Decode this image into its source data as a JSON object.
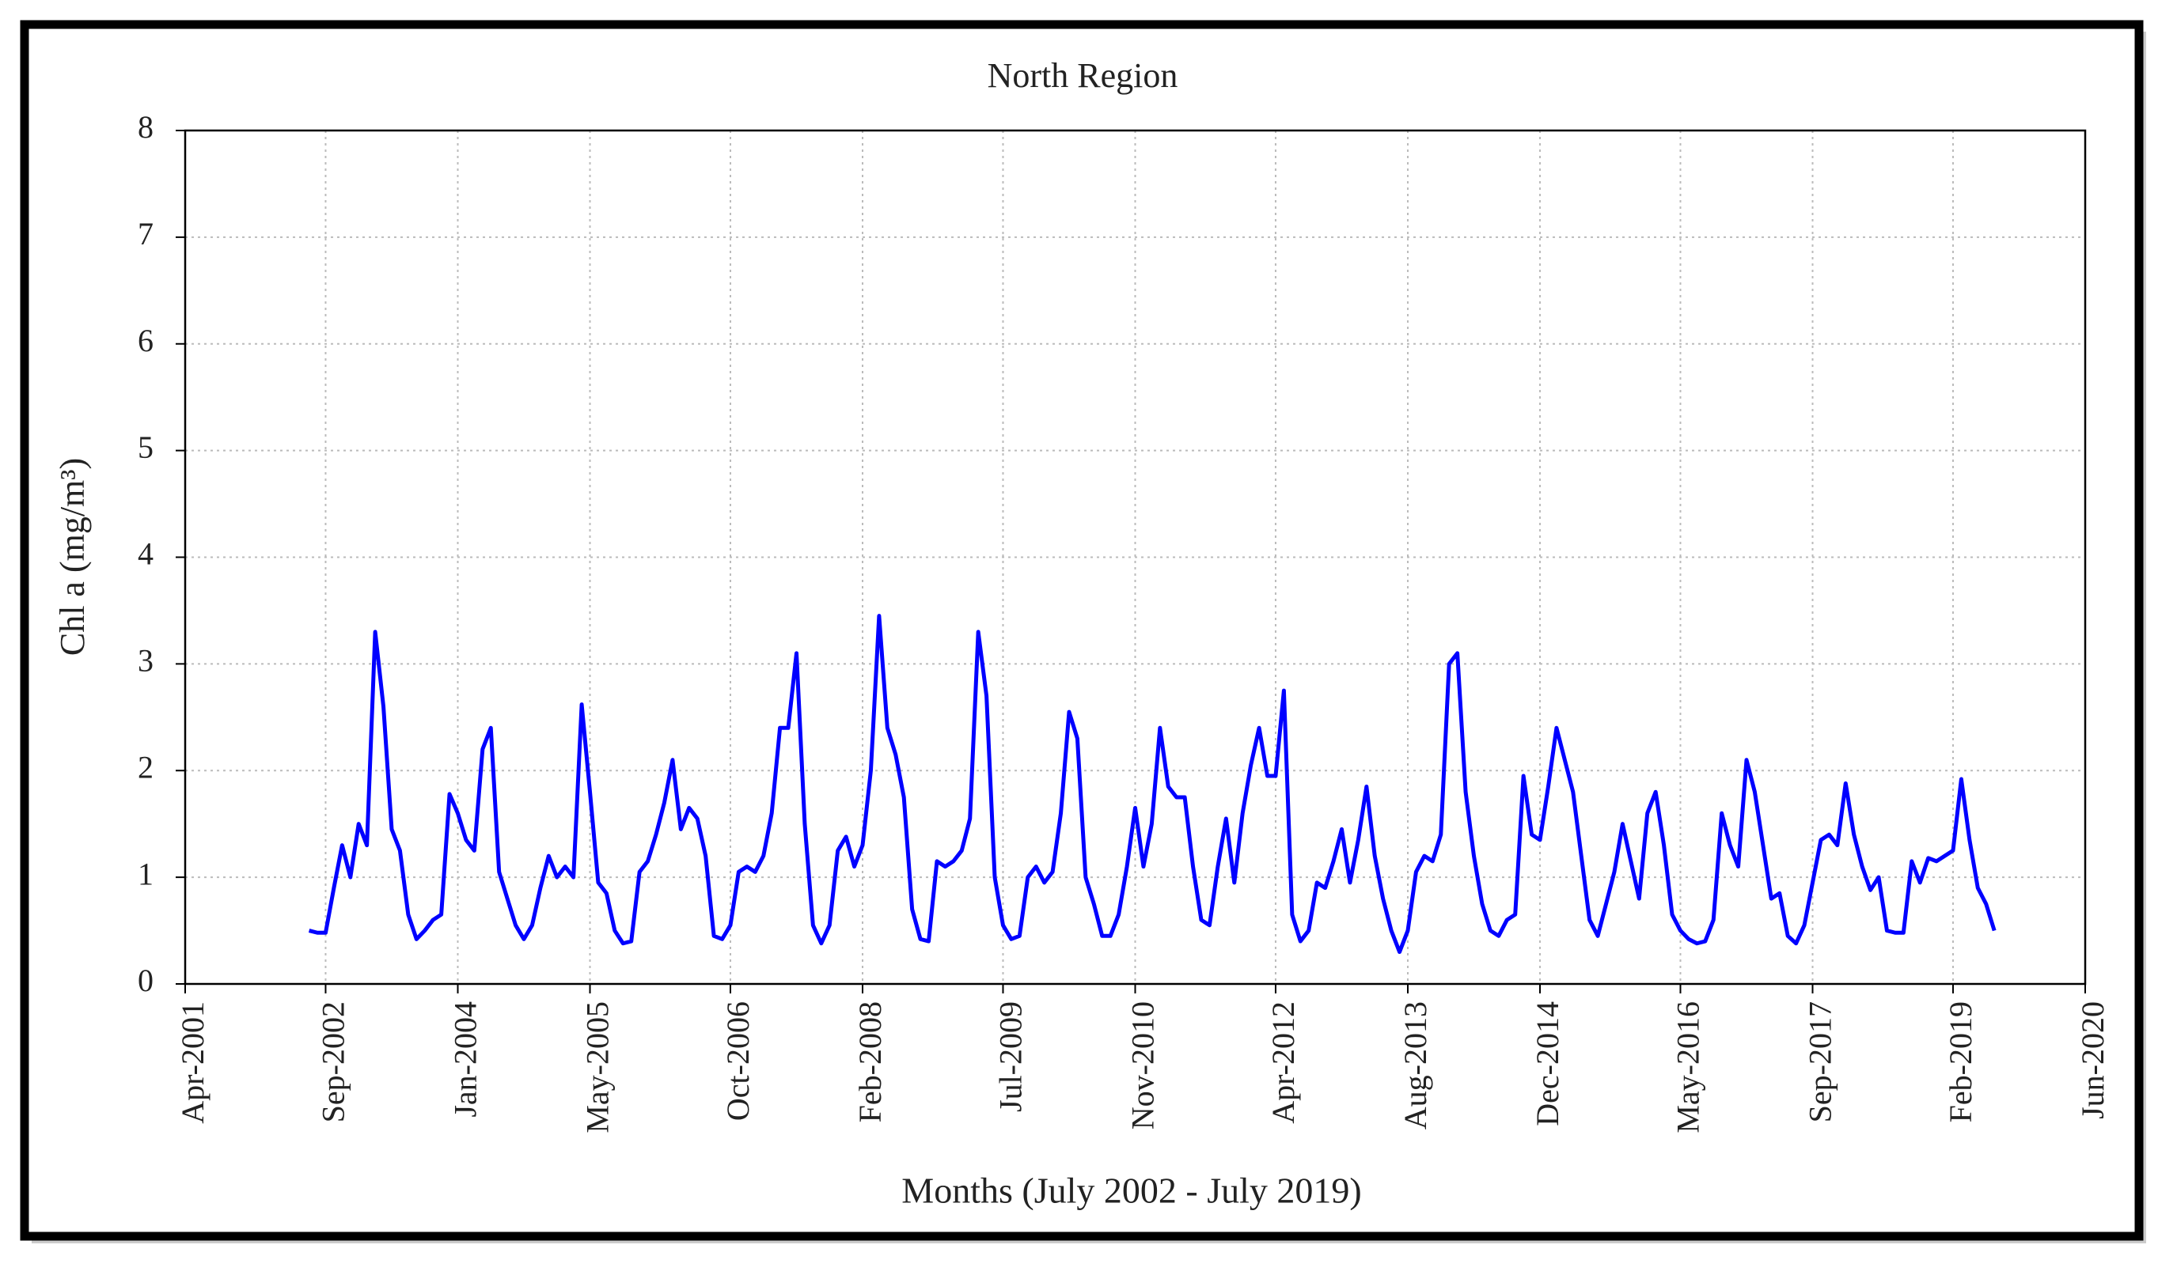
{
  "chart_data": {
    "type": "line",
    "title": "North Region",
    "xlabel": "Months (July 2002 - July 2019)",
    "ylabel": "Chl a (mg/m³)",
    "x": [
      "2002-07",
      "2002-08",
      "2002-09",
      "2002-10",
      "2002-11",
      "2002-12",
      "2003-01",
      "2003-02",
      "2003-03",
      "2003-04",
      "2003-05",
      "2003-06",
      "2003-07",
      "2003-08",
      "2003-09",
      "2003-10",
      "2003-11",
      "2003-12",
      "2004-01",
      "2004-02",
      "2004-03",
      "2004-04",
      "2004-05",
      "2004-06",
      "2004-07",
      "2004-08",
      "2004-09",
      "2004-10",
      "2004-11",
      "2004-12",
      "2005-01",
      "2005-02",
      "2005-03",
      "2005-04",
      "2005-05",
      "2005-06",
      "2005-07",
      "2005-08",
      "2005-09",
      "2005-10",
      "2005-11",
      "2005-12",
      "2006-01",
      "2006-02",
      "2006-03",
      "2006-04",
      "2006-05",
      "2006-06",
      "2006-07",
      "2006-08",
      "2006-09",
      "2006-10",
      "2006-11",
      "2006-12",
      "2007-01",
      "2007-02",
      "2007-03",
      "2007-04",
      "2007-05",
      "2007-06",
      "2007-07",
      "2007-08",
      "2007-09",
      "2007-10",
      "2007-11",
      "2007-12",
      "2008-01",
      "2008-02",
      "2008-03",
      "2008-04",
      "2008-05",
      "2008-06",
      "2008-07",
      "2008-08",
      "2008-09",
      "2008-10",
      "2008-11",
      "2008-12",
      "2009-01",
      "2009-02",
      "2009-03",
      "2009-04",
      "2009-05",
      "2009-06",
      "2009-07",
      "2009-08",
      "2009-09",
      "2009-10",
      "2009-11",
      "2009-12",
      "2010-01",
      "2010-02",
      "2010-03",
      "2010-04",
      "2010-05",
      "2010-06",
      "2010-07",
      "2010-08",
      "2010-09",
      "2010-10",
      "2010-11",
      "2010-12",
      "2011-01",
      "2011-02",
      "2011-03",
      "2011-04",
      "2011-05",
      "2011-06",
      "2011-07",
      "2011-08",
      "2011-09",
      "2011-10",
      "2011-11",
      "2011-12",
      "2012-01",
      "2012-02",
      "2012-03",
      "2012-04",
      "2012-05",
      "2012-06",
      "2012-07",
      "2012-08",
      "2012-09",
      "2012-10",
      "2012-11",
      "2012-12",
      "2013-01",
      "2013-02",
      "2013-03",
      "2013-04",
      "2013-05",
      "2013-06",
      "2013-07",
      "2013-08",
      "2013-09",
      "2013-10",
      "2013-11",
      "2013-12",
      "2014-01",
      "2014-02",
      "2014-03",
      "2014-04",
      "2014-05",
      "2014-06",
      "2014-07",
      "2014-08",
      "2014-09",
      "2014-10",
      "2014-11",
      "2014-12",
      "2015-01",
      "2015-02",
      "2015-03",
      "2015-04",
      "2015-05",
      "2015-06",
      "2015-07",
      "2015-08",
      "2015-09",
      "2015-10",
      "2015-11",
      "2015-12",
      "2016-01",
      "2016-02",
      "2016-03",
      "2016-04",
      "2016-05",
      "2016-06",
      "2016-07",
      "2016-08",
      "2016-09",
      "2016-10",
      "2016-11",
      "2016-12",
      "2017-01",
      "2017-02",
      "2017-03",
      "2017-04",
      "2017-05",
      "2017-06",
      "2017-07",
      "2017-08",
      "2017-09",
      "2017-10",
      "2017-11",
      "2017-12",
      "2018-01",
      "2018-02",
      "2018-03",
      "2018-04",
      "2018-05",
      "2018-06",
      "2018-07",
      "2018-08",
      "2018-09",
      "2018-10",
      "2018-11",
      "2018-12",
      "2019-01",
      "2019-02",
      "2019-03",
      "2019-04",
      "2019-05",
      "2019-06",
      "2019-07"
    ],
    "series": [
      {
        "color": "#0000ff",
        "values": [
          0.5,
          0.48,
          0.48,
          0.9,
          1.3,
          1.0,
          1.5,
          1.3,
          3.3,
          2.6,
          1.45,
          1.25,
          0.65,
          0.42,
          0.5,
          0.6,
          0.65,
          1.78,
          1.6,
          1.35,
          1.25,
          2.2,
          2.4,
          1.05,
          0.8,
          0.55,
          0.42,
          0.55,
          0.9,
          1.2,
          1.0,
          1.1,
          1.0,
          2.62,
          1.8,
          0.95,
          0.85,
          0.5,
          0.38,
          0.4,
          1.05,
          1.15,
          1.4,
          1.7,
          2.1,
          1.45,
          1.65,
          1.55,
          1.2,
          0.45,
          0.42,
          0.55,
          1.05,
          1.1,
          1.05,
          1.2,
          1.6,
          2.4,
          2.4,
          3.1,
          1.5,
          0.55,
          0.38,
          0.55,
          1.25,
          1.38,
          1.1,
          1.3,
          2.0,
          3.45,
          2.4,
          2.15,
          1.75,
          0.7,
          0.42,
          0.4,
          1.15,
          1.1,
          1.15,
          1.25,
          1.55,
          3.3,
          2.7,
          1.0,
          0.55,
          0.42,
          0.45,
          1.0,
          1.1,
          0.95,
          1.05,
          1.6,
          2.55,
          2.3,
          1.0,
          0.75,
          0.45,
          0.45,
          0.65,
          1.1,
          1.65,
          1.1,
          1.5,
          2.4,
          1.85,
          1.75,
          1.75,
          1.1,
          0.6,
          0.55,
          1.1,
          1.55,
          0.95,
          1.6,
          2.05,
          2.4,
          1.95,
          1.95,
          2.75,
          0.65,
          0.4,
          0.5,
          0.95,
          0.9,
          1.15,
          1.45,
          0.95,
          1.35,
          1.85,
          1.2,
          0.8,
          0.5,
          0.3,
          0.5,
          1.05,
          1.2,
          1.15,
          1.4,
          3.0,
          3.1,
          1.8,
          1.2,
          0.75,
          0.5,
          0.45,
          0.6,
          0.65,
          1.95,
          1.4,
          1.35,
          1.85,
          2.4,
          2.1,
          1.8,
          1.2,
          0.6,
          0.45,
          0.75,
          1.05,
          1.5,
          1.15,
          0.8,
          1.6,
          1.8,
          1.3,
          0.65,
          0.5,
          0.42,
          0.38,
          0.4,
          0.6,
          1.6,
          1.3,
          1.1,
          2.1,
          1.8,
          1.3,
          0.8,
          0.85,
          0.45,
          0.38,
          0.55,
          0.95,
          1.35,
          1.4,
          1.3,
          1.88,
          1.4,
          1.1,
          0.88,
          1.0,
          0.5,
          0.48,
          0.48,
          1.15,
          0.95,
          1.18,
          1.15,
          1.2,
          1.25,
          1.92,
          1.35,
          0.9,
          0.75,
          0.5
        ]
      }
    ],
    "xlim": [
      "2001-04",
      "2020-06"
    ],
    "xticks": [
      {
        "value": "2001-04",
        "label": "Apr-2001"
      },
      {
        "value": "2002-09",
        "label": "Sep-2002"
      },
      {
        "value": "2004-01",
        "label": "Jan-2004"
      },
      {
        "value": "2005-05",
        "label": "May-2005"
      },
      {
        "value": "2006-10",
        "label": "Oct-2006"
      },
      {
        "value": "2008-02",
        "label": "Feb-2008"
      },
      {
        "value": "2009-07",
        "label": "Jul-2009"
      },
      {
        "value": "2010-11",
        "label": "Nov-2010"
      },
      {
        "value": "2012-04",
        "label": "Apr-2012"
      },
      {
        "value": "2013-08",
        "label": "Aug-2013"
      },
      {
        "value": "2014-12",
        "label": "Dec-2014"
      },
      {
        "value": "2016-05",
        "label": "May-2016"
      },
      {
        "value": "2017-09",
        "label": "Sep-2017"
      },
      {
        "value": "2019-02",
        "label": "Feb-2019"
      },
      {
        "value": "2020-06",
        "label": "Jun-2020"
      }
    ],
    "ylim": [
      0,
      8
    ],
    "yticks": [
      0,
      1,
      2,
      3,
      4,
      5,
      6,
      7,
      8
    ],
    "grid": true
  }
}
